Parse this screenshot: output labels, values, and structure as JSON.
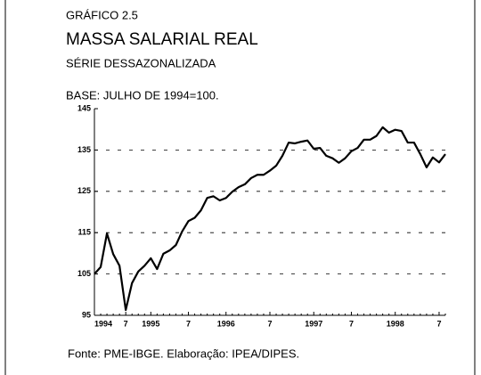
{
  "chart_data": {
    "type": "line",
    "label": "GRÁFICO 2.5",
    "title": "MASSA SALARIAL REAL",
    "subtitle": "SÉRIE DESSAZONALIZADA",
    "note": "BASE: JULHO DE 1994=100.",
    "source": "Fonte: PME-IBGE. Elaboração: IPEA/DIPES.",
    "categories": [
      "1994",
      null,
      null,
      null,
      null,
      "7",
      null,
      null,
      null,
      "1995",
      null,
      null,
      null,
      null,
      null,
      "7",
      null,
      null,
      null,
      null,
      null,
      "1996",
      null,
      null,
      null,
      null,
      null,
      null,
      "7",
      null,
      null,
      null,
      null,
      null,
      null,
      "1997",
      null,
      null,
      null,
      null,
      null,
      "7",
      null,
      null,
      null,
      null,
      null,
      null,
      "1998",
      null,
      null,
      null,
      null,
      null,
      null,
      "7",
      null
    ],
    "series": [
      {
        "color": "#000000",
        "values": [
          105,
          106.7,
          114.8,
          109.8,
          107,
          96.3,
          102.8,
          105.6,
          107,
          108.8,
          106.2,
          109.9,
          110.7,
          112,
          115.3,
          117.8,
          118.6,
          120.4,
          123.4,
          123.8,
          122.8,
          123.4,
          124.9,
          126,
          126.7,
          128.2,
          129,
          129,
          130,
          131.2,
          133.6,
          136.8,
          136.6,
          137,
          137.3,
          135.3,
          135.5,
          133.6,
          133,
          131.9,
          133,
          134.7,
          135.5,
          137.5,
          137.5,
          138.4,
          140.5,
          139.2,
          139.9,
          139.6,
          136.8,
          136.8,
          134,
          130.8,
          133.2,
          132,
          134
        ]
      }
    ],
    "ylim": [
      95,
      145
    ],
    "yticks": [
      95,
      105,
      115,
      125,
      135,
      145
    ],
    "grid": true
  }
}
